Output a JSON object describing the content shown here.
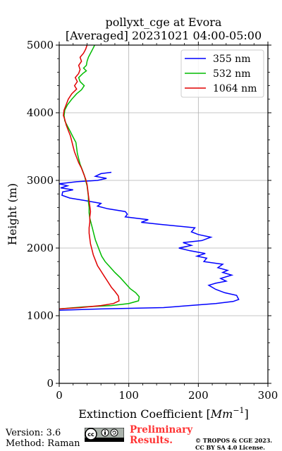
{
  "chart_data": {
    "type": "line",
    "title_lines": [
      "pollyxt_cge at Evora",
      "[Averaged] 20231021 04:00-05:00"
    ],
    "xlabel": "Extinction Coefficient [",
    "xlabel_unit": "Mm",
    "xlabel_sup": "−1",
    "xlabel_end": "]",
    "ylabel": "Height (m)",
    "xlim": [
      0,
      300
    ],
    "ylim": [
      0,
      5000
    ],
    "xticks": [
      0,
      100,
      200,
      300
    ],
    "yticks": [
      0,
      1000,
      2000,
      3000,
      4000,
      5000
    ],
    "grid": true,
    "legend_position": "top-right",
    "series": [
      {
        "name": "355 nm",
        "color": "#0000ff",
        "points": [
          [
            0,
            1080
          ],
          [
            60,
            1100
          ],
          [
            150,
            1120
          ],
          [
            225,
            1180
          ],
          [
            250,
            1210
          ],
          [
            258,
            1240
          ],
          [
            255,
            1300
          ],
          [
            238,
            1340
          ],
          [
            225,
            1390
          ],
          [
            215,
            1450
          ],
          [
            225,
            1480
          ],
          [
            240,
            1510
          ],
          [
            232,
            1550
          ],
          [
            248,
            1600
          ],
          [
            235,
            1640
          ],
          [
            242,
            1670
          ],
          [
            228,
            1710
          ],
          [
            235,
            1760
          ],
          [
            208,
            1800
          ],
          [
            212,
            1850
          ],
          [
            198,
            1880
          ],
          [
            210,
            1920
          ],
          [
            188,
            1960
          ],
          [
            172,
            2000
          ],
          [
            190,
            2040
          ],
          [
            178,
            2080
          ],
          [
            205,
            2110
          ],
          [
            218,
            2160
          ],
          [
            200,
            2200
          ],
          [
            190,
            2240
          ],
          [
            195,
            2300
          ],
          [
            145,
            2350
          ],
          [
            118,
            2380
          ],
          [
            128,
            2420
          ],
          [
            95,
            2460
          ],
          [
            98,
            2500
          ],
          [
            95,
            2540
          ],
          [
            70,
            2580
          ],
          [
            55,
            2620
          ],
          [
            60,
            2660
          ],
          [
            38,
            2700
          ],
          [
            15,
            2740
          ],
          [
            4,
            2780
          ],
          [
            5,
            2830
          ],
          [
            20,
            2860
          ],
          [
            2,
            2890
          ],
          [
            12,
            2920
          ],
          [
            0,
            2950
          ],
          [
            25,
            2980
          ],
          [
            55,
            3000
          ],
          [
            68,
            3030
          ],
          [
            52,
            3060
          ],
          [
            60,
            3100
          ],
          [
            75,
            3120
          ]
        ]
      },
      {
        "name": "532 nm",
        "color": "#00bb00",
        "points": [
          [
            0,
            1100
          ],
          [
            35,
            1130
          ],
          [
            75,
            1150
          ],
          [
            100,
            1180
          ],
          [
            114,
            1220
          ],
          [
            115,
            1280
          ],
          [
            110,
            1340
          ],
          [
            102,
            1400
          ],
          [
            95,
            1480
          ],
          [
            88,
            1560
          ],
          [
            80,
            1640
          ],
          [
            73,
            1720
          ],
          [
            66,
            1800
          ],
          [
            61,
            1880
          ],
          [
            58,
            1960
          ],
          [
            55,
            2040
          ],
          [
            52,
            2120
          ],
          [
            50,
            2200
          ],
          [
            48,
            2280
          ],
          [
            46,
            2360
          ],
          [
            44,
            2440
          ],
          [
            43,
            2520
          ],
          [
            43,
            2600
          ],
          [
            42,
            2680
          ],
          [
            42,
            2760
          ],
          [
            41,
            2840
          ],
          [
            40,
            2920
          ],
          [
            38,
            3000
          ],
          [
            36,
            3080
          ],
          [
            33,
            3160
          ],
          [
            30,
            3240
          ],
          [
            28,
            3320
          ],
          [
            26,
            3400
          ],
          [
            25,
            3480
          ],
          [
            24,
            3560
          ],
          [
            20,
            3640
          ],
          [
            16,
            3720
          ],
          [
            12,
            3800
          ],
          [
            8,
            3880
          ],
          [
            7,
            3960
          ],
          [
            8,
            4040
          ],
          [
            12,
            4120
          ],
          [
            18,
            4200
          ],
          [
            25,
            4280
          ],
          [
            32,
            4340
          ],
          [
            36,
            4400
          ],
          [
            30,
            4460
          ],
          [
            28,
            4520
          ],
          [
            34,
            4580
          ],
          [
            39,
            4620
          ],
          [
            35,
            4660
          ],
          [
            39,
            4700
          ],
          [
            40,
            4760
          ],
          [
            42,
            4820
          ],
          [
            45,
            4880
          ],
          [
            48,
            4940
          ],
          [
            51,
            5000
          ]
        ]
      },
      {
        "name": "1064 nm",
        "color": "#e00000",
        "points": [
          [
            0,
            1100
          ],
          [
            30,
            1120
          ],
          [
            60,
            1150
          ],
          [
            78,
            1180
          ],
          [
            86,
            1220
          ],
          [
            85,
            1290
          ],
          [
            80,
            1360
          ],
          [
            75,
            1420
          ],
          [
            70,
            1500
          ],
          [
            65,
            1580
          ],
          [
            60,
            1660
          ],
          [
            55,
            1740
          ],
          [
            52,
            1820
          ],
          [
            49,
            1900
          ],
          [
            47,
            1980
          ],
          [
            45,
            2060
          ],
          [
            44,
            2140
          ],
          [
            43,
            2220
          ],
          [
            43,
            2300
          ],
          [
            44,
            2380
          ],
          [
            44,
            2460
          ],
          [
            45,
            2540
          ],
          [
            44,
            2620
          ],
          [
            43,
            2700
          ],
          [
            42,
            2780
          ],
          [
            41,
            2860
          ],
          [
            40,
            2940
          ],
          [
            38,
            3020
          ],
          [
            35,
            3100
          ],
          [
            32,
            3180
          ],
          [
            28,
            3260
          ],
          [
            25,
            3340
          ],
          [
            22,
            3420
          ],
          [
            20,
            3500
          ],
          [
            18,
            3580
          ],
          [
            16,
            3660
          ],
          [
            13,
            3740
          ],
          [
            10,
            3820
          ],
          [
            8,
            3900
          ],
          [
            6,
            3960
          ],
          [
            7,
            4040
          ],
          [
            10,
            4120
          ],
          [
            13,
            4200
          ],
          [
            18,
            4280
          ],
          [
            25,
            4350
          ],
          [
            22,
            4400
          ],
          [
            26,
            4460
          ],
          [
            23,
            4520
          ],
          [
            28,
            4580
          ],
          [
            30,
            4640
          ],
          [
            28,
            4700
          ],
          [
            32,
            4760
          ],
          [
            30,
            4820
          ],
          [
            35,
            4880
          ],
          [
            38,
            4940
          ],
          [
            40,
            5000
          ]
        ]
      }
    ]
  },
  "footer": {
    "version": "Version: 3.6",
    "method": "Method: Raman",
    "preliminary_line1": "Preliminary",
    "preliminary_line2": "Results.",
    "copyright_line1": "© TROPOS & CGE 2023.",
    "copyright_line2": "CC BY SA 4.0 License.",
    "license_badge": "cc-by-sa-badge"
  }
}
